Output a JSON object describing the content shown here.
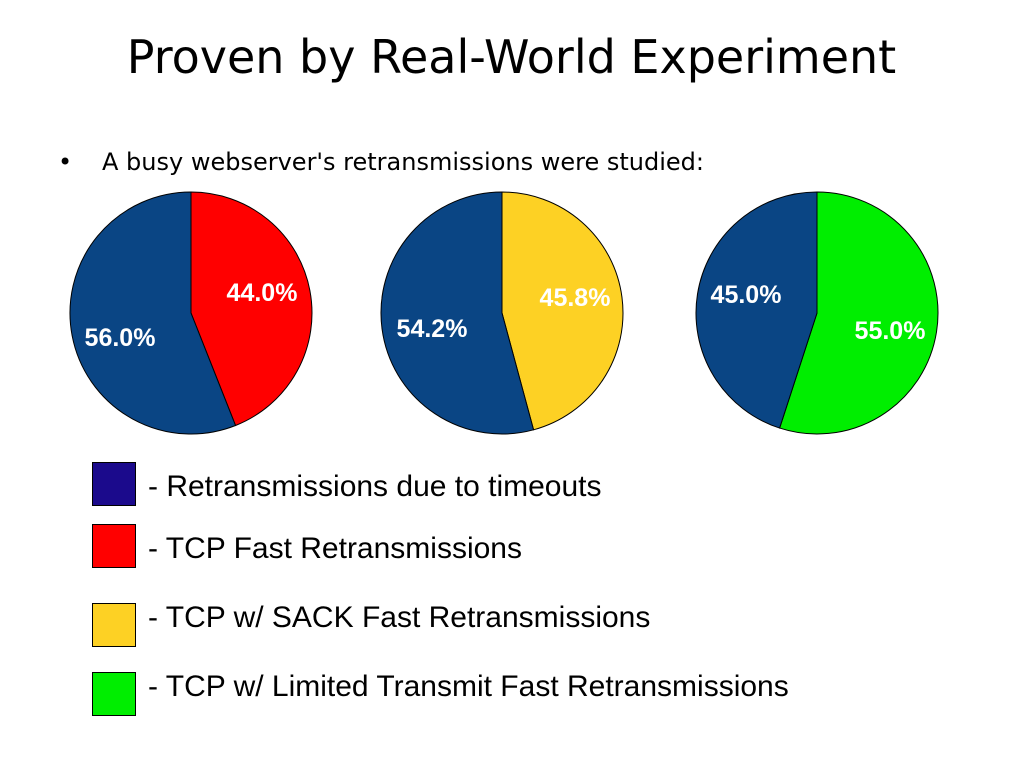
{
  "slide": {
    "title": "Proven by Real-World Experiment",
    "bullet_symbol": "•",
    "bullet_text": "A busy webserver's retransmissions were studied:"
  },
  "colors": {
    "timeouts": "#0a4584",
    "fast_retransmit": "#ff0000",
    "sack": "#fdd124",
    "limited_transmit": "#00ee00",
    "legend_timeouts_swatch": "#1b0a8c",
    "label_text": "#ffffff"
  },
  "chart_data": [
    {
      "type": "pie",
      "slices": [
        {
          "category": "fast_retransmit",
          "value": 44.0,
          "label": "44.0%"
        },
        {
          "category": "timeouts",
          "value": 56.0,
          "label": "56.0%"
        }
      ]
    },
    {
      "type": "pie",
      "slices": [
        {
          "category": "sack",
          "value": 45.8,
          "label": "45.8%"
        },
        {
          "category": "timeouts",
          "value": 54.2,
          "label": "54.2%"
        }
      ]
    },
    {
      "type": "pie",
      "slices": [
        {
          "category": "limited_transmit",
          "value": 55.0,
          "label": "55.0%"
        },
        {
          "category": "timeouts",
          "value": 45.0,
          "label": "45.0%"
        }
      ]
    }
  ],
  "legend": {
    "items": [
      {
        "category": "timeouts",
        "label": "- Retransmissions due to timeouts"
      },
      {
        "category": "fast_retransmit",
        "label": "- TCP Fast Retransmissions"
      },
      {
        "category": "sack",
        "label": "- TCP w/ SACK Fast Retransmissions"
      },
      {
        "category": "limited_transmit",
        "label": "- TCP w/ Limited Transmit Fast Retransmissions"
      }
    ]
  }
}
